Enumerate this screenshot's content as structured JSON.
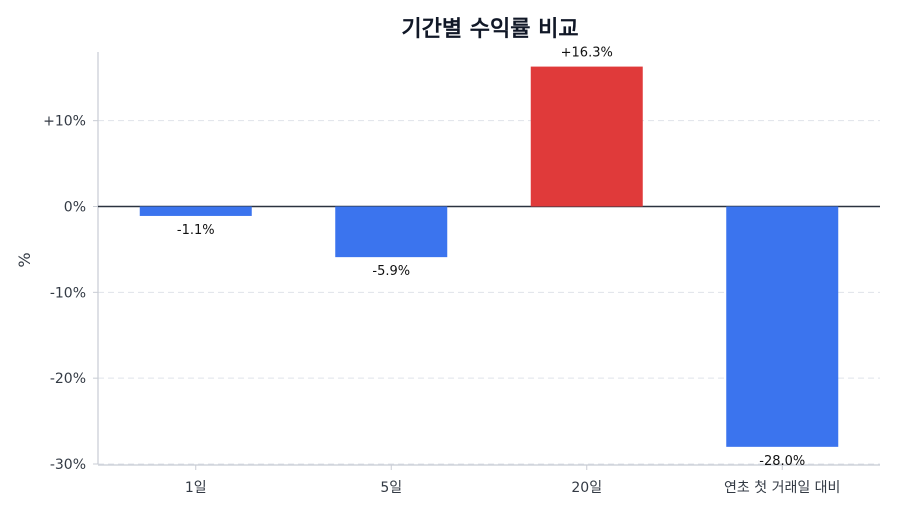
{
  "chart_data": {
    "type": "bar",
    "title": "기간별 수익률 비교",
    "xlabel": "",
    "ylabel": "%",
    "categories": [
      "1일",
      "5일",
      "20일",
      "연초 첫 거래일 대비"
    ],
    "values": [
      -1.1,
      -5.9,
      16.3,
      -28.0
    ],
    "data_labels": [
      "-1.1%",
      "-5.9%",
      "+16.3%",
      "-28.0%"
    ],
    "ylim": [
      -30,
      18
    ],
    "yticks": [
      -30,
      -20,
      -10,
      0,
      10
    ],
    "ytick_labels": [
      "-30%",
      "-20%",
      "-10%",
      "0%",
      "+10%"
    ],
    "grid": "y dashed",
    "colors": {
      "positive": "#e03a3a",
      "negative": "#3b74ee",
      "zero_line": "#2b3340",
      "grid": "#dfe3ea",
      "axis": "#c8ccd4"
    }
  }
}
